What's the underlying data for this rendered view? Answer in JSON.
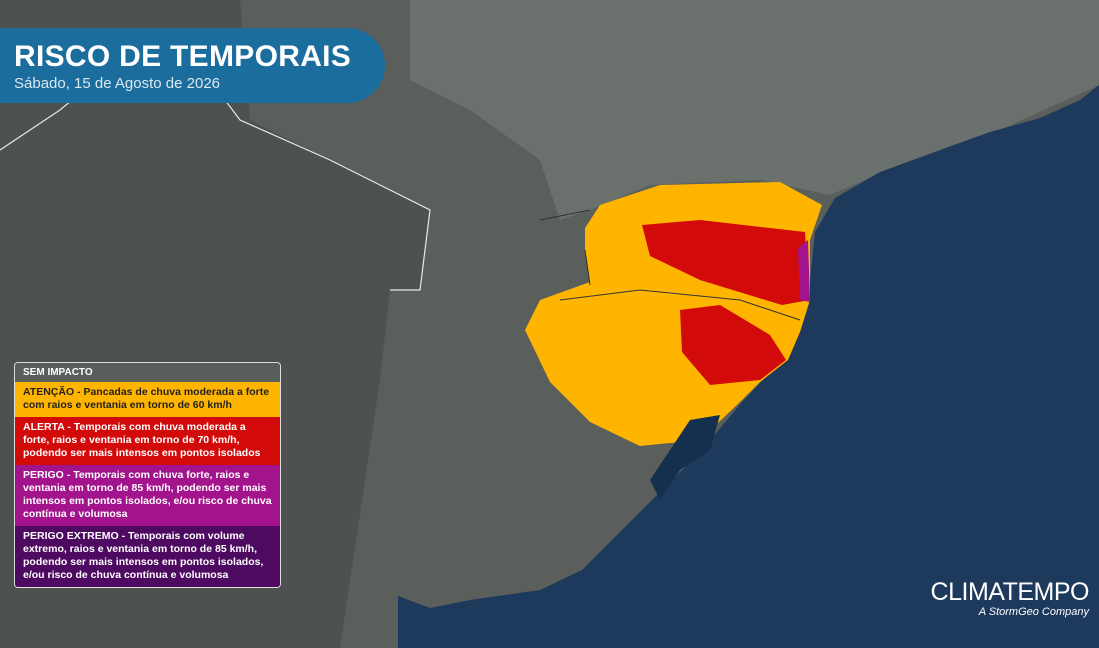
{
  "header": {
    "title": "RISCO DE TEMPORAIS",
    "subtitle": "Sábado, 15 de Agosto de 2026"
  },
  "legend": [
    {
      "level": "SEM IMPACTO",
      "color": "#585e5a"
    },
    {
      "level": "ATENÇÃO - ",
      "description": "Pancadas de chuva moderada a forte com raios e ventania em torno de 60 km/h",
      "color": "#ffb400"
    },
    {
      "level": "ALERTA - ",
      "description": "Temporais com chuva moderada a forte, raios e ventania em torno de 70 km/h, podendo ser mais intensos em pontos isolados",
      "color": "#d20a0a"
    },
    {
      "level": "PERIGO - ",
      "description": "Temporais com chuva forte, raios e ventania em torno de 85 km/h, podendo ser mais intensos em pontos isolados, e/ou risco de chuva contínua e volumosa",
      "color": "#a3148c"
    },
    {
      "level": "PERIGO EXTREMO - ",
      "description": "Temporais com volume extremo, raios e ventania em torno de 85 km/h, podendo ser mais intensos em pontos isolados, e/ou risco de chuva contínua e volumosa",
      "color": "#4e0a60"
    }
  ],
  "brand": {
    "name": "CLIMATEMPO",
    "tagline": "A StormGeo Company"
  }
}
